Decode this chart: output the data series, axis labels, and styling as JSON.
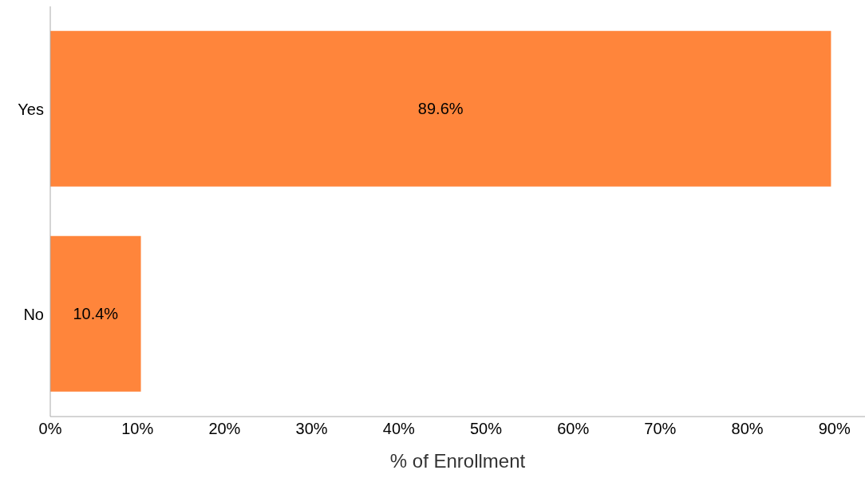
{
  "chart_data": {
    "type": "bar",
    "orientation": "horizontal",
    "xlabel": "% of Enrollment",
    "categories": [
      "Yes",
      "No"
    ],
    "values": [
      89.6,
      10.4
    ],
    "color": "#ff853b",
    "value_labels": [
      "89.6%",
      "10.4%"
    ],
    "xlim": [
      0,
      93.5
    ],
    "xticks": [
      {
        "value": 0,
        "label": "0%"
      },
      {
        "value": 10,
        "label": "10%"
      },
      {
        "value": 20,
        "label": "20%"
      },
      {
        "value": 30,
        "label": "30%"
      },
      {
        "value": 40,
        "label": "40%"
      },
      {
        "value": 50,
        "label": "50%"
      },
      {
        "value": 60,
        "label": "60%"
      },
      {
        "value": 70,
        "label": "70%"
      },
      {
        "value": 80,
        "label": "80%"
      },
      {
        "value": 90,
        "label": "90%"
      }
    ],
    "grid": false,
    "legend": false
  }
}
